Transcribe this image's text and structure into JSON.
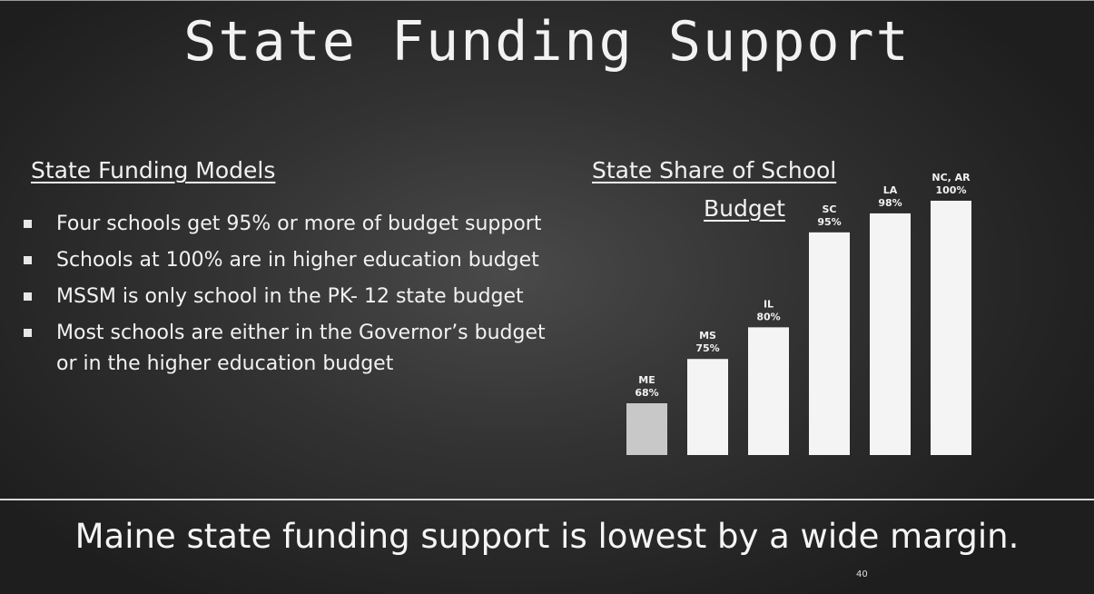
{
  "slide": {
    "title": "State Funding Support",
    "left_heading": "State Funding Models",
    "right_heading_line1": "State Share of School",
    "right_heading_line2": "Budget",
    "bullets": [
      "Four schools get 95% or more of budget support",
      "Schools at 100% are in higher education budget",
      "MSSM is only school in the PK- 12 state budget",
      "Most schools are either in the Governor’s budget or in the higher education budget"
    ],
    "footer": "Maine state funding support is lowest by a wide margin.",
    "page_number": "40"
  },
  "colors": {
    "highlight_bar": "#c8c8c8",
    "bar": "#f4f4f4",
    "text": "#f2f2f2"
  },
  "chart_data": {
    "type": "bar",
    "title": "State Share of School Budget",
    "categories": [
      "ME",
      "MS",
      "IL",
      "SC",
      "LA",
      "NC, AR"
    ],
    "value_labels": [
      "68%",
      "75%",
      "80%",
      "95%",
      "98%",
      "100%"
    ],
    "values": [
      68,
      75,
      80,
      95,
      98,
      100
    ],
    "highlight_index": 0,
    "xlabel": "",
    "ylabel": "",
    "grid": false,
    "legend": "none"
  }
}
